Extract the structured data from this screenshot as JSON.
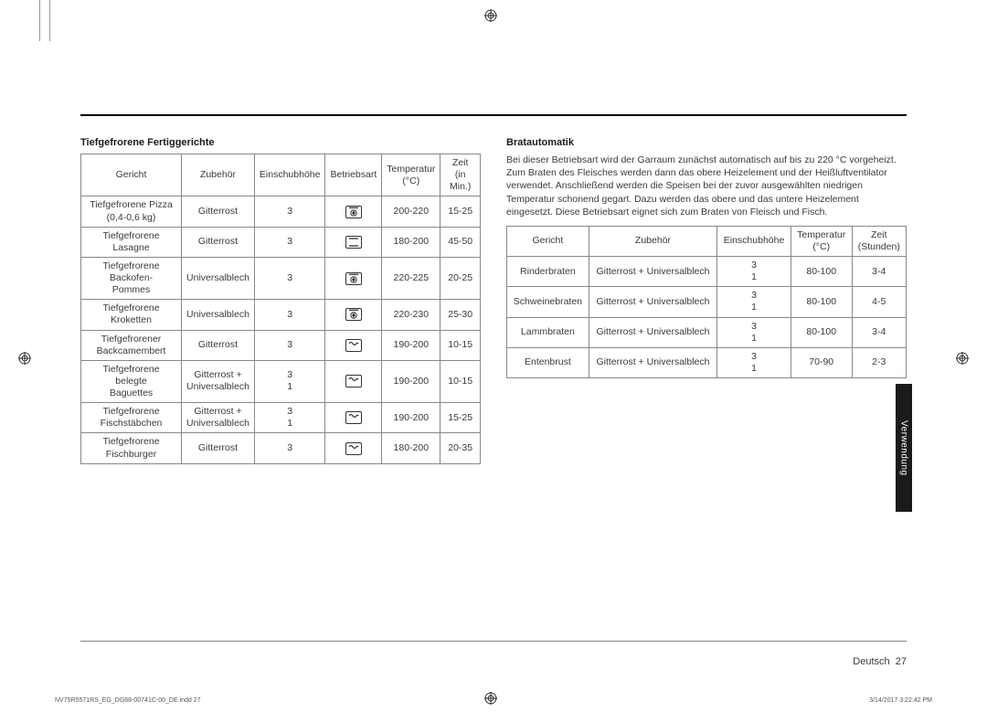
{
  "left": {
    "title": "Tiefgefrorene Fertiggerichte",
    "headers": [
      "Gericht",
      "Zubehör",
      "Einschubhöhe",
      "Betriebsart",
      "Temperatur\n(°C)",
      "Zeit\n(in Min.)"
    ],
    "rows": [
      {
        "gericht": "Tiefgefrorene Pizza\n(0,4-0,6 kg)",
        "zubehor": "Gitterrost",
        "einschub": "3",
        "mode": "fan-heat",
        "temp": "200-220",
        "zeit": "15-25"
      },
      {
        "gericht": "Tiefgefrorene Lasagne",
        "zubehor": "Gitterrost",
        "einschub": "3",
        "mode": "conv",
        "temp": "180-200",
        "zeit": "45-50"
      },
      {
        "gericht": "Tiefgefrorene Backofen-\nPommes",
        "zubehor": "Universalblech",
        "einschub": "3",
        "mode": "fan-heat",
        "temp": "220-225",
        "zeit": "20-25"
      },
      {
        "gericht": "Tiefgefrorene Kroketten",
        "zubehor": "Universalblech",
        "einschub": "3",
        "mode": "fan-heat",
        "temp": "220-230",
        "zeit": "25-30"
      },
      {
        "gericht": "Tiefgefrorener\nBackcamembert",
        "zubehor": "Gitterrost",
        "einschub": "3",
        "mode": "top",
        "temp": "190-200",
        "zeit": "10-15"
      },
      {
        "gericht": "Tiefgefrorene belegte\nBaguettes",
        "zubehor": "Gitterrost +\nUniversalblech",
        "einschub": "3\n1",
        "mode": "top",
        "temp": "190-200",
        "zeit": "10-15"
      },
      {
        "gericht": "Tiefgefrorene\nFischstäbchen",
        "zubehor": "Gitterrost +\nUniversalblech",
        "einschub": "3\n1",
        "mode": "top",
        "temp": "190-200",
        "zeit": "15-25"
      },
      {
        "gericht": "Tiefgefrorene\nFischburger",
        "zubehor": "Gitterrost",
        "einschub": "3",
        "mode": "top",
        "temp": "180-200",
        "zeit": "20-35"
      }
    ]
  },
  "right": {
    "title": "Bratautomatik",
    "para": "Bei dieser Betriebsart wird der Garraum zunächst automatisch auf bis zu 220 °C vorgeheizt. Zum Braten des Fleisches werden dann das obere Heizelement und der Heißluftventilator verwendet. Anschließend werden die Speisen bei der zuvor ausgewählten niedrigen Temperatur schonend gegart. Dazu werden das obere und das untere Heizelement eingesetzt. Diese Betriebsart eignet sich zum Braten von Fleisch und Fisch.",
    "headers": [
      "Gericht",
      "Zubehör",
      "Einschubhöhe",
      "Temperatur\n(°C)",
      "Zeit\n(Stunden)"
    ],
    "rows": [
      {
        "gericht": "Rinderbraten",
        "zubehor": "Gitterrost + Universalblech",
        "einschub": "3\n1",
        "temp": "80-100",
        "zeit": "3-4"
      },
      {
        "gericht": "Schweinebraten",
        "zubehor": "Gitterrost + Universalblech",
        "einschub": "3\n1",
        "temp": "80-100",
        "zeit": "4-5"
      },
      {
        "gericht": "Lammbraten",
        "zubehor": "Gitterrost + Universalblech",
        "einschub": "3\n1",
        "temp": "80-100",
        "zeit": "3-4"
      },
      {
        "gericht": "Entenbrust",
        "zubehor": "Gitterrost + Universalblech",
        "einschub": "3\n1",
        "temp": "70-90",
        "zeit": "2-3"
      }
    ]
  },
  "footer": {
    "lang": "Deutsch",
    "page": "27"
  },
  "tab": "Verwendung",
  "indd": {
    "left": "NV75R5571RS_EG_DG68-00741C-00_DE.indd   27",
    "right": "3/14/2017   3:22:42 PM"
  },
  "icons": {
    "fan-heat": "fan+top",
    "conv": "conventional",
    "top": "top-heat"
  },
  "colors": {
    "border": "#888",
    "text": "#3a3a3a",
    "tab_bg": "#1a1a1a"
  }
}
